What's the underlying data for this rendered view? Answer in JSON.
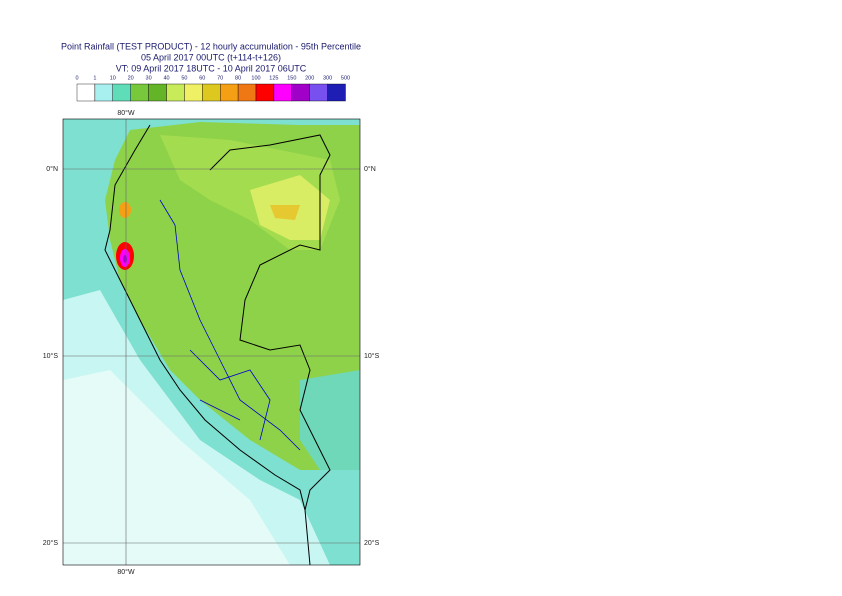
{
  "header": {
    "lines": [
      "Point Rainfall (TEST PRODUCT) - 12 hourly accumulation - 95th Percentile",
      "05 April 2017 00UTC (t+114-t+126)",
      "VT: 09 April 2017 18UTC - 10 April 2017 06UTC"
    ]
  },
  "colorbar": {
    "labels": [
      "0",
      "1",
      "10",
      "20",
      "30",
      "40",
      "50",
      "60",
      "70",
      "80",
      "100",
      "125",
      "150",
      "200",
      "300",
      "500"
    ],
    "colors": [
      "#ffffff",
      "#a8f0f0",
      "#5fdcb8",
      "#78c83c",
      "#64b428",
      "#c8eb5a",
      "#f0f064",
      "#dcc81e",
      "#f5a014",
      "#f07814",
      "#ff0000",
      "#ff00ff",
      "#a000c8",
      "#7850f0",
      "#1e1eb4",
      "#0a0a50"
    ]
  },
  "map": {
    "lat_labels": [
      "0°N",
      "10°S",
      "20°S"
    ],
    "lon_label": "80°W"
  }
}
